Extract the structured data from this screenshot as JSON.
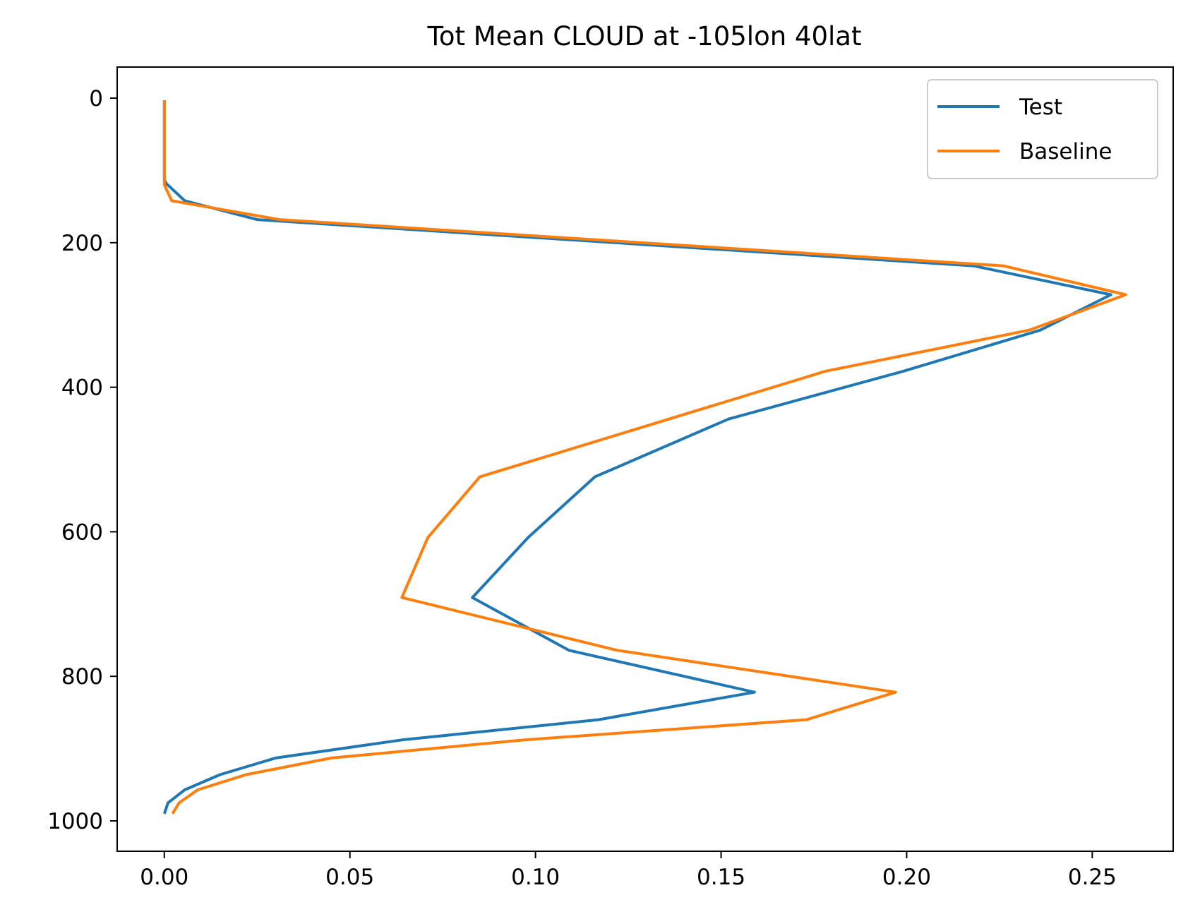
{
  "chart_data": {
    "type": "line",
    "title": "Tot Mean CLOUD at -105lon 40lat",
    "xlabel": "",
    "ylabel": "",
    "xlim": [
      -0.0127,
      0.2718
    ],
    "ylim": [
      1042,
      -43
    ],
    "y_inverted": true,
    "grid": false,
    "legend_position": "top-right",
    "x_ticks": [
      0.0,
      0.05,
      0.1,
      0.15,
      0.2,
      0.25
    ],
    "x_tick_labels": [
      "0.00",
      "0.05",
      "0.10",
      "0.15",
      "0.20",
      "0.25"
    ],
    "y_ticks": [
      0,
      200,
      400,
      600,
      800,
      1000
    ],
    "y_tick_labels": [
      "0",
      "200",
      "400",
      "600",
      "800",
      "1000"
    ],
    "series": [
      {
        "name": "Test",
        "color": "#1f77b4",
        "points": [
          [
            0.0,
            3
          ],
          [
            0.0,
            30
          ],
          [
            0.0,
            60
          ],
          [
            0.0,
            95
          ],
          [
            0.0,
            113
          ],
          [
            0.0005,
            118
          ],
          [
            0.0055,
            142
          ],
          [
            0.025,
            168
          ],
          [
            0.218,
            232
          ],
          [
            0.255,
            272
          ],
          [
            0.236,
            321
          ],
          [
            0.199,
            378
          ],
          [
            0.152,
            444
          ],
          [
            0.116,
            524
          ],
          [
            0.098,
            608
          ],
          [
            0.083,
            691
          ],
          [
            0.109,
            764
          ],
          [
            0.159,
            822
          ],
          [
            0.117,
            860
          ],
          [
            0.064,
            888
          ],
          [
            0.03,
            913
          ],
          [
            0.015,
            936
          ],
          [
            0.0055,
            957
          ],
          [
            0.001,
            975
          ],
          [
            0.0,
            990
          ]
        ]
      },
      {
        "name": "Baseline",
        "color": "#ff7f0e",
        "points": [
          [
            0.0,
            3
          ],
          [
            0.0,
            30
          ],
          [
            0.0,
            60
          ],
          [
            0.0,
            95
          ],
          [
            0.0,
            120
          ],
          [
            0.002,
            142
          ],
          [
            0.031,
            168
          ],
          [
            0.226,
            232
          ],
          [
            0.259,
            272
          ],
          [
            0.233,
            321
          ],
          [
            0.178,
            378
          ],
          [
            0.085,
            524
          ],
          [
            0.071,
            608
          ],
          [
            0.064,
            691
          ],
          [
            0.122,
            764
          ],
          [
            0.197,
            822
          ],
          [
            0.173,
            860
          ],
          [
            0.097,
            888
          ],
          [
            0.045,
            913
          ],
          [
            0.022,
            936
          ],
          [
            0.009,
            957
          ],
          [
            0.004,
            975
          ],
          [
            0.0022,
            990
          ]
        ]
      }
    ]
  }
}
